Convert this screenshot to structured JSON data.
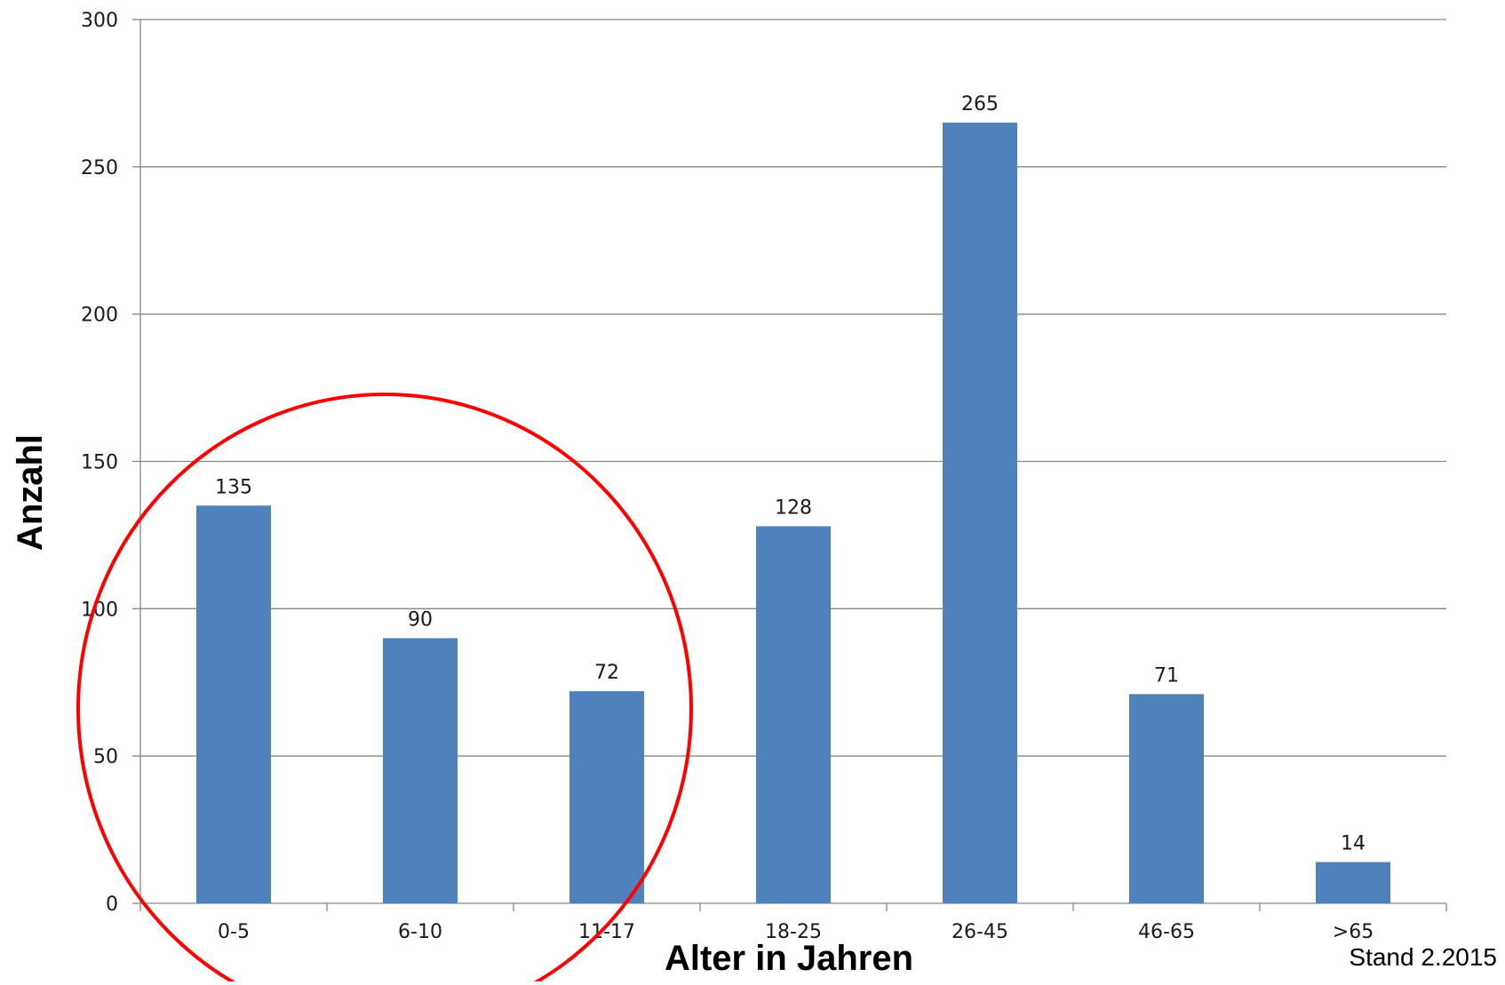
{
  "chart_data": {
    "type": "bar",
    "categories": [
      "0-5",
      "6-10",
      "11-17",
      "18-25",
      "26-45",
      "46-65",
      ">65"
    ],
    "values": [
      135,
      90,
      72,
      128,
      265,
      71,
      14
    ],
    "title": "",
    "xlabel": "Alter  in Jahren",
    "ylabel": "Anzahl",
    "ylim": [
      0,
      300
    ],
    "yticks": [
      0,
      50,
      100,
      150,
      200,
      250,
      300
    ],
    "grid": true,
    "legend": "none",
    "data_labels": true,
    "bar_color": "#4f81bd",
    "gridline_color": "#868686",
    "annotations": {
      "highlight_circle": {
        "shape": "ellipse",
        "color": "#ff0000",
        "encloses_categories": [
          "0-5",
          "6-10",
          "11-17"
        ]
      },
      "note": "Stand 2.2015"
    }
  }
}
